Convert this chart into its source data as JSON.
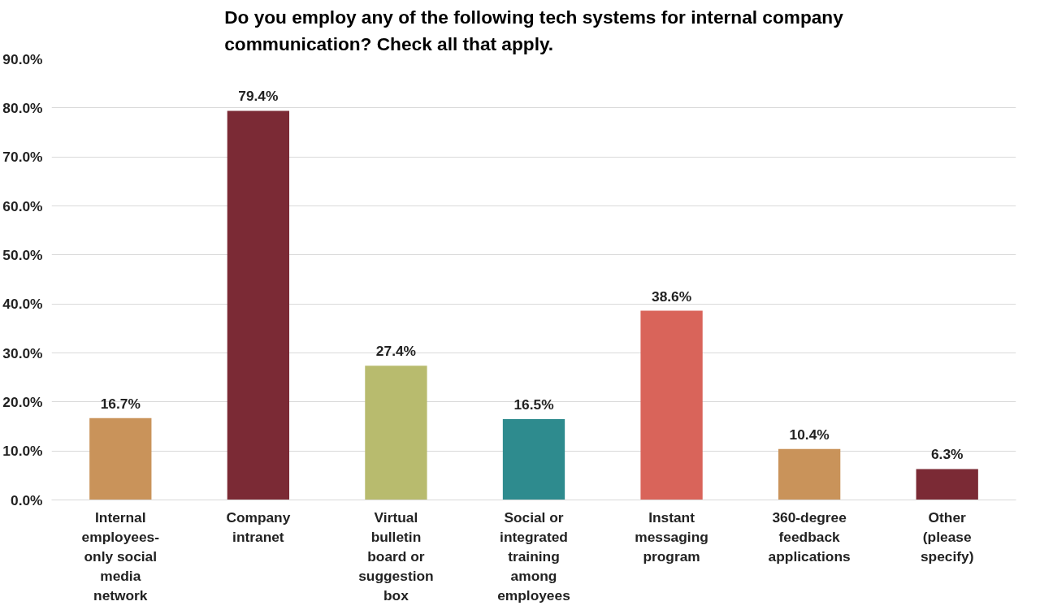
{
  "chart_data": {
    "type": "bar",
    "title": "Do you employ any of the following tech systems for internal company\ncommunication? Check all that apply.",
    "categories": [
      "Internal\nemployees-\nonly social\nmedia\nnetwork",
      "Company\nintranet",
      "Virtual\nbulletin\nboard or\nsuggestion\nbox",
      "Social or\nintegrated\ntraining\namong\nemployees",
      "Instant\nmessaging\nprogram",
      "360-degree\nfeedback\napplications",
      "Other\n(please\nspecify)"
    ],
    "values": [
      16.7,
      79.4,
      27.4,
      16.5,
      38.6,
      10.4,
      6.3
    ],
    "value_labels": [
      "16.7%",
      "79.4%",
      "27.4%",
      "16.5%",
      "38.6%",
      "10.4%",
      "6.3%"
    ],
    "colors": [
      "#c9935a",
      "#7b2a35",
      "#b8bb6e",
      "#2e8b8e",
      "#d9645a",
      "#c9935a",
      "#7b2a35"
    ],
    "ylim": [
      0,
      90
    ],
    "yticks": [
      {
        "value": 0,
        "label": "0.0%"
      },
      {
        "value": 10,
        "label": "10.0%"
      },
      {
        "value": 20,
        "label": "20.0%"
      },
      {
        "value": 30,
        "label": "30.0%"
      },
      {
        "value": 40,
        "label": "40.0%"
      },
      {
        "value": 50,
        "label": "50.0%"
      },
      {
        "value": 60,
        "label": "60.0%"
      },
      {
        "value": 70,
        "label": "70.0%"
      },
      {
        "value": 80,
        "label": "80.0%"
      },
      {
        "value": 90,
        "label": "90.0%"
      }
    ],
    "grid": "y"
  }
}
